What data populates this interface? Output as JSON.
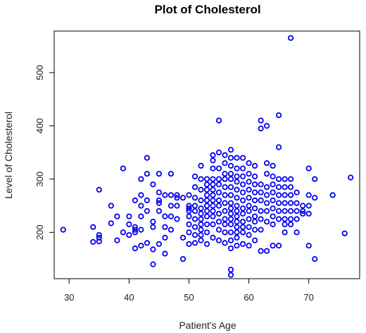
{
  "chart_data": {
    "type": "scatter",
    "title": "Plot of Cholesterol",
    "xlabel": "Patient's Age",
    "ylabel": "Level of Cholesterol",
    "xlim": [
      27.5,
      78.5
    ],
    "ylim": [
      113,
      578
    ],
    "x_ticks": [
      30,
      40,
      50,
      60,
      70
    ],
    "y_ticks": [
      200,
      300,
      400,
      500
    ],
    "grid": false,
    "marker_color": "#0000ee",
    "x": [
      29,
      34,
      34,
      35,
      35,
      35,
      35,
      37,
      37,
      38,
      38,
      39,
      39,
      40,
      40,
      40,
      41,
      41,
      41,
      41,
      41,
      42,
      42,
      42,
      42,
      42,
      42,
      43,
      43,
      43,
      43,
      43,
      44,
      44,
      44,
      44,
      44,
      45,
      45,
      45,
      45,
      45,
      45,
      46,
      46,
      46,
      46,
      46,
      47,
      47,
      47,
      47,
      47,
      48,
      48,
      48,
      48,
      49,
      49,
      49,
      50,
      50,
      50,
      50,
      50,
      50,
      50,
      50,
      51,
      51,
      51,
      51,
      51,
      51,
      51,
      51,
      51,
      52,
      52,
      52,
      52,
      52,
      52,
      52,
      52,
      52,
      52,
      52,
      53,
      53,
      53,
      53,
      53,
      53,
      53,
      53,
      53,
      53,
      53,
      54,
      54,
      54,
      54,
      54,
      54,
      54,
      54,
      54,
      54,
      54,
      54,
      54,
      55,
      55,
      55,
      55,
      55,
      55,
      55,
      55,
      55,
      55,
      55,
      55,
      56,
      56,
      56,
      56,
      56,
      56,
      56,
      56,
      56,
      56,
      56,
      56,
      57,
      57,
      57,
      57,
      57,
      57,
      57,
      57,
      57,
      57,
      57,
      57,
      57,
      57,
      57,
      57,
      57,
      58,
      58,
      58,
      58,
      58,
      58,
      58,
      58,
      58,
      58,
      58,
      58,
      58,
      58,
      59,
      59,
      59,
      59,
      59,
      59,
      59,
      59,
      59,
      59,
      59,
      59,
      60,
      60,
      60,
      60,
      60,
      60,
      60,
      60,
      60,
      60,
      60,
      61,
      61,
      61,
      61,
      61,
      61,
      61,
      61,
      61,
      61,
      62,
      62,
      62,
      62,
      62,
      62,
      62,
      62,
      62,
      63,
      63,
      63,
      63,
      63,
      63,
      63,
      63,
      63,
      64,
      64,
      64,
      64,
      64,
      64,
      64,
      64,
      64,
      65,
      65,
      65,
      65,
      65,
      65,
      65,
      65,
      65,
      66,
      66,
      66,
      66,
      66,
      66,
      66,
      66,
      67,
      67,
      67,
      67,
      67,
      67,
      67,
      67,
      68,
      68,
      68,
      68,
      68,
      69,
      69,
      69,
      70,
      70,
      70,
      70,
      70,
      71,
      71,
      71,
      74,
      76,
      77
    ],
    "y": [
      205,
      210,
      182,
      280,
      195,
      190,
      183,
      250,
      217,
      230,
      185,
      320,
      200,
      230,
      215,
      195,
      260,
      170,
      200,
      210,
      205,
      300,
      270,
      250,
      230,
      205,
      175,
      340,
      310,
      260,
      240,
      180,
      290,
      220,
      210,
      168,
      140,
      310,
      275,
      260,
      255,
      240,
      178,
      270,
      230,
      210,
      190,
      160,
      310,
      270,
      250,
      230,
      205,
      270,
      265,
      250,
      225,
      265,
      190,
      150,
      270,
      250,
      245,
      240,
      230,
      215,
      200,
      178,
      305,
      285,
      265,
      250,
      240,
      225,
      210,
      195,
      180,
      325,
      300,
      280,
      260,
      245,
      235,
      225,
      215,
      205,
      195,
      185,
      300,
      290,
      280,
      270,
      260,
      250,
      240,
      230,
      215,
      200,
      178,
      345,
      335,
      320,
      300,
      290,
      280,
      270,
      260,
      250,
      240,
      230,
      215,
      190,
      410,
      350,
      320,
      300,
      290,
      275,
      260,
      250,
      235,
      220,
      205,
      185,
      345,
      330,
      310,
      300,
      285,
      270,
      255,
      240,
      225,
      215,
      200,
      180,
      355,
      340,
      325,
      310,
      300,
      285,
      270,
      255,
      245,
      235,
      225,
      215,
      200,
      185,
      170,
      130,
      120,
      340,
      320,
      305,
      295,
      280,
      265,
      250,
      240,
      230,
      220,
      210,
      200,
      190,
      175,
      340,
      320,
      305,
      290,
      275,
      260,
      245,
      235,
      220,
      210,
      200,
      178,
      330,
      310,
      295,
      280,
      265,
      250,
      240,
      225,
      210,
      195,
      175,
      325,
      305,
      290,
      275,
      260,
      245,
      230,
      220,
      205,
      185,
      410,
      395,
      290,
      275,
      260,
      240,
      225,
      205,
      165,
      400,
      330,
      310,
      285,
      270,
      255,
      240,
      220,
      165,
      325,
      305,
      290,
      275,
      260,
      245,
      230,
      215,
      175,
      420,
      360,
      300,
      285,
      270,
      255,
      240,
      225,
      175,
      300,
      285,
      270,
      255,
      240,
      225,
      215,
      200,
      565,
      300,
      285,
      270,
      255,
      240,
      225,
      215,
      275,
      255,
      240,
      225,
      200,
      250,
      240,
      235,
      320,
      270,
      250,
      235,
      175,
      300,
      265,
      150,
      270,
      198,
      303
    ]
  }
}
